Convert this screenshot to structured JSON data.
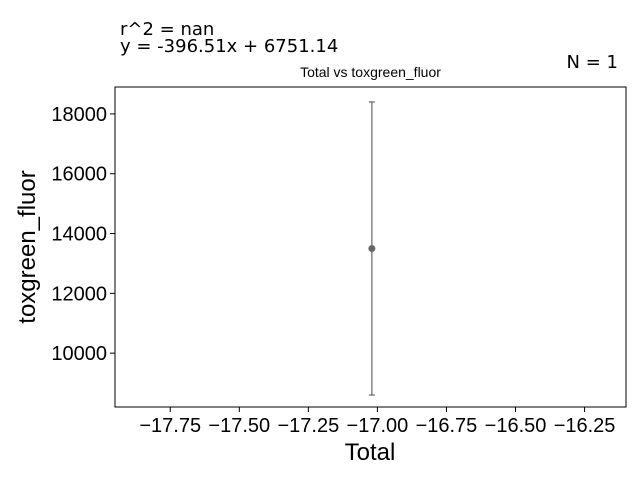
{
  "annotations": {
    "r_squared": "r^2 = nan",
    "equation": "y = -396.51x + 6751.14",
    "n": "N = 1"
  },
  "chart_data": {
    "type": "scatter",
    "title": "Total vs toxgreen_fluor",
    "xlabel": "Total",
    "ylabel": "toxgreen_fluor",
    "xlim": [
      -17.95,
      -16.1
    ],
    "ylim": [
      8200,
      18900
    ],
    "x_ticks": [
      -17.75,
      -17.5,
      -17.25,
      -17.0,
      -16.75,
      -16.5,
      -16.25
    ],
    "x_tick_labels": [
      "−17.75",
      "−17.50",
      "−17.25",
      "−17.00",
      "−16.75",
      "−16.50",
      "−16.25"
    ],
    "y_ticks": [
      10000,
      12000,
      14000,
      16000,
      18000
    ],
    "y_tick_labels": [
      "10000",
      "12000",
      "14000",
      "16000",
      "18000"
    ],
    "grid": false,
    "points": [
      {
        "x": -17.02,
        "y": 13500,
        "err_low": 8600,
        "err_high": 18400
      }
    ],
    "colors": {
      "point": "#666666",
      "axes": "#000000"
    }
  }
}
